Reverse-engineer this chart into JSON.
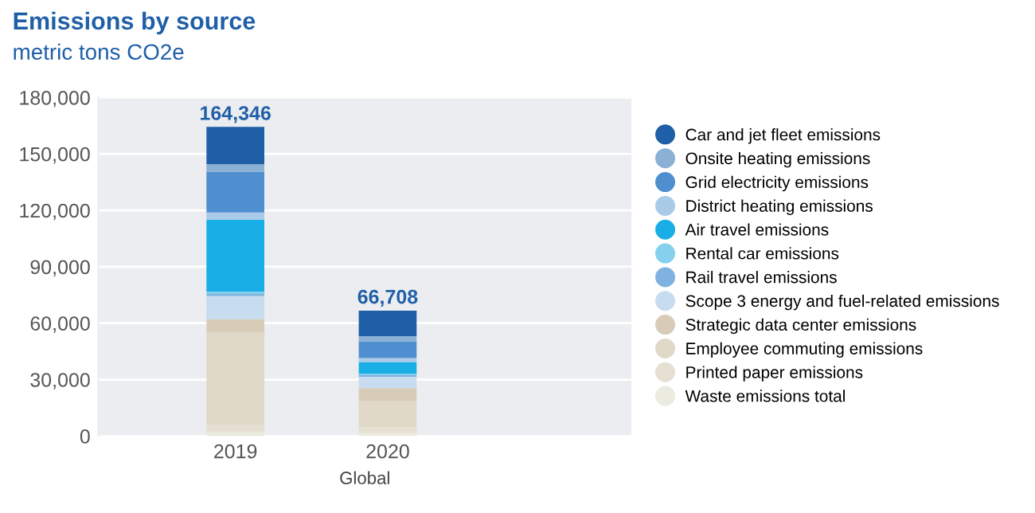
{
  "chart_data": {
    "type": "bar",
    "stacked": true,
    "title": "Emissions by source",
    "subtitle": "metric tons CO2e",
    "xlabel": "Global",
    "categories": [
      "2019",
      "2020"
    ],
    "series": [
      {
        "name": "Waste emissions total",
        "color": "#ecebe0",
        "values": [
          2000,
          1700
        ]
      },
      {
        "name": "Printed paper emissions",
        "color": "#e6e0d2",
        "values": [
          4100,
          3000
        ]
      },
      {
        "name": "Employee commuting emissions",
        "color": "#e0d9c8",
        "values": [
          49000,
          13800
        ]
      },
      {
        "name": "Strategic data center emissions",
        "color": "#d8ccb8",
        "values": [
          7000,
          7000
        ]
      },
      {
        "name": "Scope 3 energy and fuel-related emissions",
        "color": "#c7dcef",
        "values": [
          12400,
          6000
        ]
      },
      {
        "name": "Rail travel emissions",
        "color": "#7fb2e0",
        "values": [
          1100,
          900
        ]
      },
      {
        "name": "Rental car emissions",
        "color": "#86d0ee",
        "values": [
          1100,
          800
        ]
      },
      {
        "name": "Air travel emissions",
        "color": "#1aaee6",
        "values": [
          38200,
          6100
        ]
      },
      {
        "name": "District heating emissions",
        "color": "#a9cbe8",
        "values": [
          3900,
          2200
        ]
      },
      {
        "name": "Grid electricity emissions",
        "color": "#4f8fcf",
        "values": [
          21800,
          8900
        ]
      },
      {
        "name": "Onsite heating emissions",
        "color": "#8bb0d6",
        "values": [
          3900,
          2700
        ]
      },
      {
        "name": "Car and jet fleet emissions",
        "color": "#1f5fa8",
        "values": [
          19846,
          13608
        ]
      }
    ],
    "totals": [
      "164,346",
      "66,708"
    ],
    "ylim": [
      0,
      180000
    ],
    "yticks": [
      0,
      {
        "value": 30000,
        "label": "30,000"
      },
      {
        "value": 60000,
        "label": "60,000"
      },
      {
        "value": 90000,
        "label": "90,000"
      },
      {
        "value": 120000,
        "label": "120,000"
      },
      {
        "value": 150000,
        "label": "150,000"
      },
      {
        "value": 180000,
        "label": "180,000"
      }
    ],
    "grid": "y",
    "legend": "right",
    "marker": "circle"
  }
}
